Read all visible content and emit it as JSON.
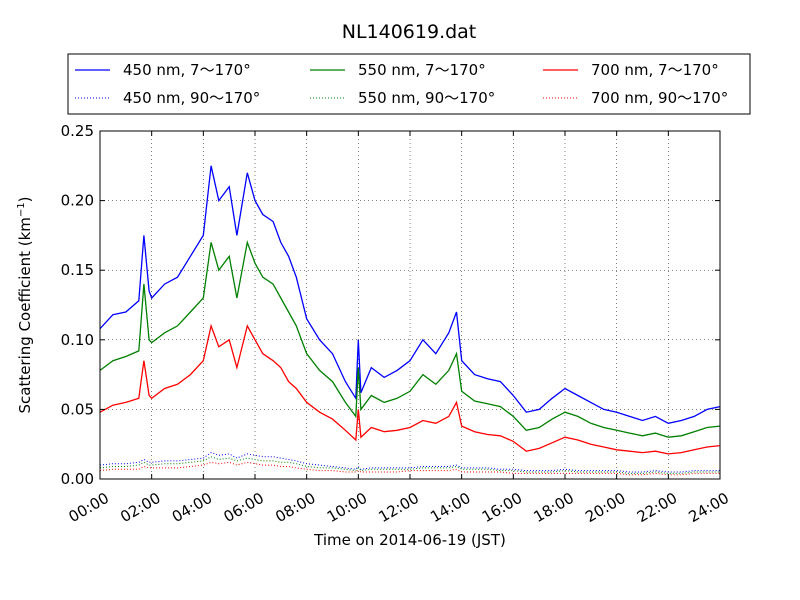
{
  "chart_data": {
    "type": "line",
    "title": "NL140619.dat",
    "xlabel": "Time on 2014-06-19 (JST)",
    "ylabel": "Scattering Coefficient (km",
    "ylabel_sup": "−1",
    "ylabel_tail": ")",
    "xlim": [
      "2014-06-19 00:00",
      "2014-06-20 00:00"
    ],
    "ylim": [
      0.0,
      0.25
    ],
    "x_ticks": [
      "00:00",
      "02:00",
      "04:00",
      "06:00",
      "08:00",
      "10:00",
      "12:00",
      "14:00",
      "16:00",
      "18:00",
      "20:00",
      "22:00",
      "24:00"
    ],
    "y_ticks": [
      "0.00",
      "0.05",
      "0.10",
      "0.15",
      "0.20",
      "0.25"
    ],
    "grid": true,
    "legend_position": "top",
    "x_hours": [
      0,
      0.5,
      1,
      1.5,
      1.7,
      1.9,
      2,
      2.5,
      3,
      3.5,
      4,
      4.3,
      4.6,
      5,
      5.3,
      5.7,
      6,
      6.3,
      6.7,
      7,
      7.3,
      7.6,
      8,
      8.5,
      9,
      9.5,
      9.9,
      10,
      10.1,
      10.5,
      11,
      11.5,
      12,
      12.5,
      13,
      13.5,
      13.8,
      14,
      14.5,
      15,
      15.5,
      16,
      16.5,
      17,
      17.5,
      18,
      18.5,
      19,
      19.5,
      20,
      20.5,
      21,
      21.5,
      22,
      22.5,
      23,
      23.5,
      24
    ],
    "series": [
      {
        "name": "450 nm, 7～170°",
        "color": "#0000ff",
        "style": "solid",
        "values": [
          0.108,
          0.118,
          0.12,
          0.128,
          0.175,
          0.135,
          0.13,
          0.14,
          0.145,
          0.16,
          0.175,
          0.225,
          0.2,
          0.21,
          0.175,
          0.22,
          0.2,
          0.19,
          0.185,
          0.17,
          0.16,
          0.145,
          0.115,
          0.1,
          0.09,
          0.07,
          0.058,
          0.1,
          0.062,
          0.08,
          0.073,
          0.078,
          0.085,
          0.1,
          0.09,
          0.105,
          0.12,
          0.085,
          0.075,
          0.072,
          0.07,
          0.06,
          0.048,
          0.05,
          0.058,
          0.065,
          0.06,
          0.055,
          0.05,
          0.048,
          0.045,
          0.042,
          0.045,
          0.04,
          0.042,
          0.045,
          0.05,
          0.052
        ]
      },
      {
        "name": "450 nm, 90～170°",
        "color": "#0000ff",
        "style": "dotted",
        "values": [
          0.01,
          0.011,
          0.011,
          0.012,
          0.014,
          0.012,
          0.012,
          0.013,
          0.013,
          0.014,
          0.015,
          0.019,
          0.017,
          0.018,
          0.015,
          0.018,
          0.017,
          0.016,
          0.016,
          0.015,
          0.014,
          0.013,
          0.011,
          0.01,
          0.009,
          0.008,
          0.007,
          0.009,
          0.007,
          0.008,
          0.008,
          0.008,
          0.008,
          0.009,
          0.009,
          0.009,
          0.01,
          0.008,
          0.008,
          0.008,
          0.007,
          0.007,
          0.006,
          0.006,
          0.006,
          0.007,
          0.006,
          0.006,
          0.006,
          0.006,
          0.005,
          0.005,
          0.006,
          0.005,
          0.005,
          0.006,
          0.006,
          0.006
        ]
      },
      {
        "name": "550 nm, 7～170°",
        "color": "#008000",
        "style": "solid",
        "values": [
          0.078,
          0.085,
          0.088,
          0.092,
          0.14,
          0.1,
          0.098,
          0.105,
          0.11,
          0.12,
          0.13,
          0.17,
          0.15,
          0.16,
          0.13,
          0.17,
          0.155,
          0.145,
          0.14,
          0.13,
          0.12,
          0.11,
          0.09,
          0.078,
          0.07,
          0.055,
          0.045,
          0.08,
          0.05,
          0.06,
          0.055,
          0.058,
          0.063,
          0.075,
          0.068,
          0.078,
          0.09,
          0.063,
          0.056,
          0.054,
          0.052,
          0.045,
          0.035,
          0.037,
          0.043,
          0.048,
          0.045,
          0.04,
          0.037,
          0.035,
          0.033,
          0.031,
          0.033,
          0.03,
          0.031,
          0.034,
          0.037,
          0.038
        ]
      },
      {
        "name": "550 nm, 90～170°",
        "color": "#008000",
        "style": "dotted",
        "values": [
          0.008,
          0.009,
          0.009,
          0.01,
          0.012,
          0.01,
          0.01,
          0.011,
          0.011,
          0.012,
          0.013,
          0.016,
          0.014,
          0.015,
          0.013,
          0.015,
          0.014,
          0.013,
          0.013,
          0.012,
          0.012,
          0.011,
          0.009,
          0.008,
          0.008,
          0.007,
          0.006,
          0.008,
          0.006,
          0.007,
          0.007,
          0.007,
          0.007,
          0.008,
          0.008,
          0.008,
          0.009,
          0.007,
          0.007,
          0.007,
          0.006,
          0.006,
          0.005,
          0.005,
          0.005,
          0.006,
          0.005,
          0.005,
          0.005,
          0.005,
          0.004,
          0.004,
          0.005,
          0.004,
          0.004,
          0.005,
          0.005,
          0.005
        ]
      },
      {
        "name": "700 nm, 7～170°",
        "color": "#ff0000",
        "style": "solid",
        "values": [
          0.048,
          0.053,
          0.055,
          0.058,
          0.085,
          0.06,
          0.058,
          0.065,
          0.068,
          0.075,
          0.085,
          0.11,
          0.095,
          0.1,
          0.08,
          0.11,
          0.1,
          0.09,
          0.085,
          0.08,
          0.07,
          0.065,
          0.055,
          0.048,
          0.043,
          0.035,
          0.028,
          0.05,
          0.03,
          0.037,
          0.034,
          0.035,
          0.037,
          0.042,
          0.04,
          0.045,
          0.055,
          0.038,
          0.034,
          0.032,
          0.031,
          0.027,
          0.02,
          0.022,
          0.026,
          0.03,
          0.028,
          0.025,
          0.023,
          0.021,
          0.02,
          0.019,
          0.02,
          0.018,
          0.019,
          0.021,
          0.023,
          0.024
        ]
      },
      {
        "name": "700 nm, 90～170°",
        "color": "#ff0000",
        "style": "dotted",
        "values": [
          0.006,
          0.007,
          0.007,
          0.007,
          0.009,
          0.008,
          0.008,
          0.008,
          0.008,
          0.009,
          0.01,
          0.012,
          0.011,
          0.012,
          0.01,
          0.012,
          0.011,
          0.01,
          0.01,
          0.009,
          0.009,
          0.008,
          0.007,
          0.006,
          0.006,
          0.005,
          0.005,
          0.006,
          0.005,
          0.005,
          0.005,
          0.005,
          0.006,
          0.006,
          0.006,
          0.006,
          0.007,
          0.005,
          0.005,
          0.005,
          0.005,
          0.004,
          0.004,
          0.004,
          0.004,
          0.004,
          0.004,
          0.004,
          0.004,
          0.004,
          0.003,
          0.003,
          0.004,
          0.003,
          0.003,
          0.004,
          0.004,
          0.004
        ]
      }
    ]
  }
}
